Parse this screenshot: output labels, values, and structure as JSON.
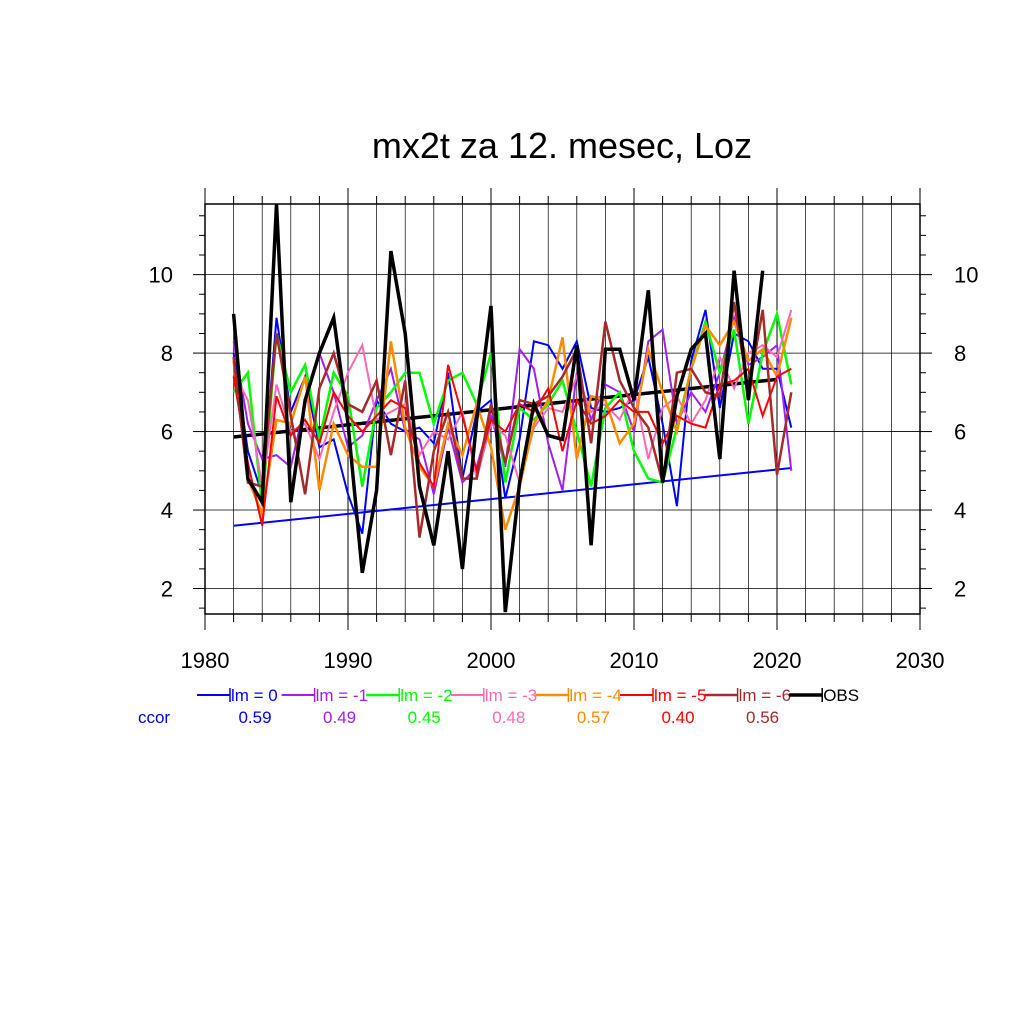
{
  "chart_data": {
    "type": "line",
    "title": "mx2t za 12. mesec, Loz",
    "xlabel": "",
    "ylabel": "",
    "xlim": [
      1980,
      2030
    ],
    "ylim": [
      1.35,
      11.8
    ],
    "x_ticks": [
      1980,
      1990,
      2000,
      2010,
      2020,
      2030
    ],
    "y_ticks": [
      2,
      4,
      6,
      8,
      10
    ],
    "grid": true,
    "ccor_label": "ccor",
    "years": [
      1982,
      1983,
      1984,
      1985,
      1986,
      1987,
      1988,
      1989,
      1990,
      1991,
      1992,
      1993,
      1994,
      1995,
      1996,
      1997,
      1998,
      1999,
      2000,
      2001,
      2002,
      2003,
      2004,
      2005,
      2006,
      2007,
      2008,
      2009,
      2010,
      2011,
      2012,
      2013,
      2014,
      2015,
      2016,
      2017,
      2018,
      2019,
      2020,
      2021
    ],
    "series": [
      {
        "name": "lm = 0",
        "color": "#0000ff",
        "ccor": "0.59",
        "width": 2,
        "values": [
          8.0,
          5.5,
          4.4,
          8.9,
          6.5,
          7.4,
          5.6,
          5.8,
          4.4,
          3.4,
          6.8,
          6.2,
          6.0,
          6.1,
          5.7,
          7.5,
          4.8,
          6.5,
          6.8,
          4.3,
          5.8,
          8.3,
          8.2,
          7.6,
          8.3,
          6.6,
          6.5,
          6.6,
          6.8,
          7.9,
          6.2,
          4.1,
          7.8,
          9.1,
          6.6,
          8.5,
          8.3,
          7.6,
          7.6,
          6.1
        ]
      },
      {
        "name": "lm = -1",
        "color": "#a020f0",
        "ccor": "0.49",
        "width": 2,
        "values": [
          8.3,
          6.2,
          5.3,
          5.4,
          5.1,
          6.7,
          8.0,
          7.0,
          5.6,
          5.9,
          6.8,
          7.6,
          6.0,
          5.8,
          4.4,
          6.1,
          4.7,
          5.1,
          6.4,
          5.1,
          8.1,
          7.6,
          5.7,
          4.5,
          7.5,
          6.3,
          7.2,
          7.0,
          6.0,
          8.3,
          8.6,
          6.2,
          7.0,
          6.5,
          7.5,
          8.9,
          7.7,
          7.9,
          8.2,
          5.0
        ]
      },
      {
        "name": "lm = -2",
        "color": "#00ff00",
        "ccor": "0.45",
        "width": 2.5,
        "values": [
          7.0,
          7.5,
          4.1,
          8.5,
          7.0,
          7.7,
          5.8,
          7.5,
          6.9,
          4.6,
          6.6,
          7.0,
          7.5,
          7.5,
          6.2,
          7.3,
          7.5,
          6.7,
          8.0,
          4.7,
          6.6,
          6.3,
          6.7,
          7.3,
          6.0,
          4.6,
          6.6,
          7.0,
          5.5,
          4.8,
          4.7,
          6.1,
          7.6,
          8.8,
          7.5,
          8.6,
          6.2,
          8.0,
          9.0,
          7.2
        ]
      },
      {
        "name": "lm = -3",
        "color": "#ff69b4",
        "ccor": "0.48",
        "width": 2,
        "values": [
          7.5,
          6.8,
          4.6,
          7.2,
          6.0,
          6.2,
          5.3,
          6.5,
          7.5,
          8.2,
          6.3,
          6.5,
          6.7,
          5.4,
          6.0,
          5.8,
          6.5,
          4.8,
          6.2,
          5.9,
          4.7,
          6.1,
          6.6,
          6.5,
          7.4,
          6.5,
          6.7,
          6.3,
          7.1,
          5.3,
          6.6,
          6.9,
          6.2,
          6.8,
          7.9,
          7.1,
          8.0,
          8.2,
          7.9,
          9.1
        ]
      },
      {
        "name": "lm = -4",
        "color": "#ff8c00",
        "ccor": "0.57",
        "width": 2.5,
        "values": [
          7.8,
          4.8,
          3.9,
          6.3,
          6.2,
          7.4,
          4.5,
          6.2,
          5.4,
          5.1,
          5.1,
          8.3,
          6.1,
          5.1,
          4.6,
          6.2,
          5.4,
          6.7,
          5.6,
          3.5,
          4.6,
          6.2,
          6.8,
          8.4,
          5.3,
          6.9,
          6.8,
          5.7,
          6.2,
          8.1,
          7.0,
          6.0,
          7.6,
          8.7,
          8.2,
          8.8,
          7.8,
          8.1,
          7.4,
          8.9
        ]
      },
      {
        "name": "lm = -5",
        "color": "#ff0000",
        "ccor": "0.40",
        "width": 2,
        "values": [
          7.4,
          5.2,
          3.6,
          6.9,
          5.9,
          6.3,
          5.7,
          7.0,
          6.4,
          6.0,
          6.4,
          6.8,
          6.6,
          5.2,
          4.6,
          7.7,
          6.4,
          5.0,
          6.3,
          6.0,
          6.7,
          6.5,
          7.1,
          5.5,
          6.8,
          6.2,
          6.4,
          6.8,
          6.5,
          6.5,
          5.7,
          6.4,
          6.2,
          6.1,
          7.2,
          7.3,
          7.6,
          6.4,
          7.4,
          7.6
        ]
      },
      {
        "name": "lm = -6",
        "color": "#a52a2a",
        "ccor": "0.56",
        "width": 2.5,
        "values": [
          7.9,
          4.7,
          4.6,
          8.5,
          6.4,
          4.4,
          7.1,
          8.0,
          6.7,
          6.5,
          7.3,
          5.4,
          7.3,
          3.3,
          5.5,
          6.5,
          4.8,
          4.8,
          6.7,
          5.2,
          6.8,
          6.7,
          6.9,
          7.4,
          8.1,
          5.7,
          8.8,
          7.3,
          6.6,
          6.1,
          4.7,
          7.5,
          7.6,
          7.0,
          6.9,
          9.3,
          7.0,
          9.1,
          4.9,
          7.0
        ]
      },
      {
        "name": "OBS",
        "color": "#000000",
        "ccor": "",
        "width": 3.5,
        "values": [
          9.0,
          4.8,
          4.2,
          11.8,
          4.2,
          6.8,
          8.0,
          8.9,
          6.2,
          2.4,
          4.5,
          10.6,
          8.5,
          4.6,
          3.1,
          5.5,
          2.5,
          6.3,
          9.2,
          1.4,
          4.7,
          6.7,
          5.9,
          5.8,
          8.2,
          3.1,
          8.1,
          8.1,
          6.8,
          9.6,
          4.7,
          6.9,
          8.1,
          8.5,
          5.3,
          10.1,
          6.8,
          10.1,
          null,
          null
        ]
      }
    ],
    "trends": [
      {
        "name": "lm = 0 trend",
        "color": "#0000ff",
        "x": [
          1982,
          2021
        ],
        "y": [
          3.6,
          5.07
        ],
        "width": 2
      },
      {
        "name": "OBS trend",
        "color": "#000000",
        "x": [
          1982,
          2020
        ],
        "y": [
          5.86,
          7.33
        ],
        "width": 3.5
      }
    ]
  }
}
